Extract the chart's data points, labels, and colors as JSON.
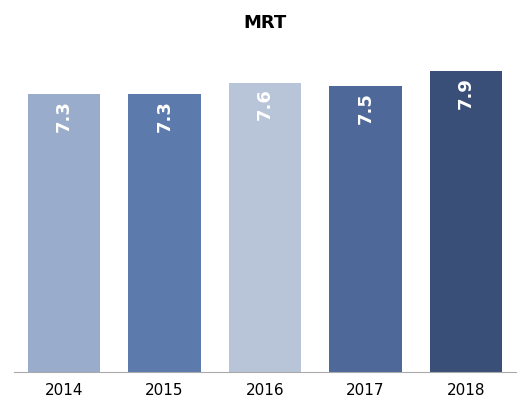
{
  "title": "MRT",
  "categories": [
    "2014",
    "2015",
    "2016",
    "2017",
    "2018"
  ],
  "values": [
    7.3,
    7.3,
    7.6,
    7.5,
    7.9
  ],
  "bar_colors": [
    "#9aaccb",
    "#5c7aab",
    "#b8c4d8",
    "#4e6899",
    "#394f78"
  ],
  "bar_labels": [
    "7.3",
    "7.3",
    "7.6",
    "7.5",
    "7.9"
  ],
  "label_color": "#ffffff",
  "ylim": [
    0,
    8.6
  ],
  "title_fontsize": 13,
  "ylabel_fontsize": 10,
  "tick_fontsize": 11,
  "label_fontsize": 13,
  "bar_width": 0.72,
  "background_color": "#ffffff"
}
